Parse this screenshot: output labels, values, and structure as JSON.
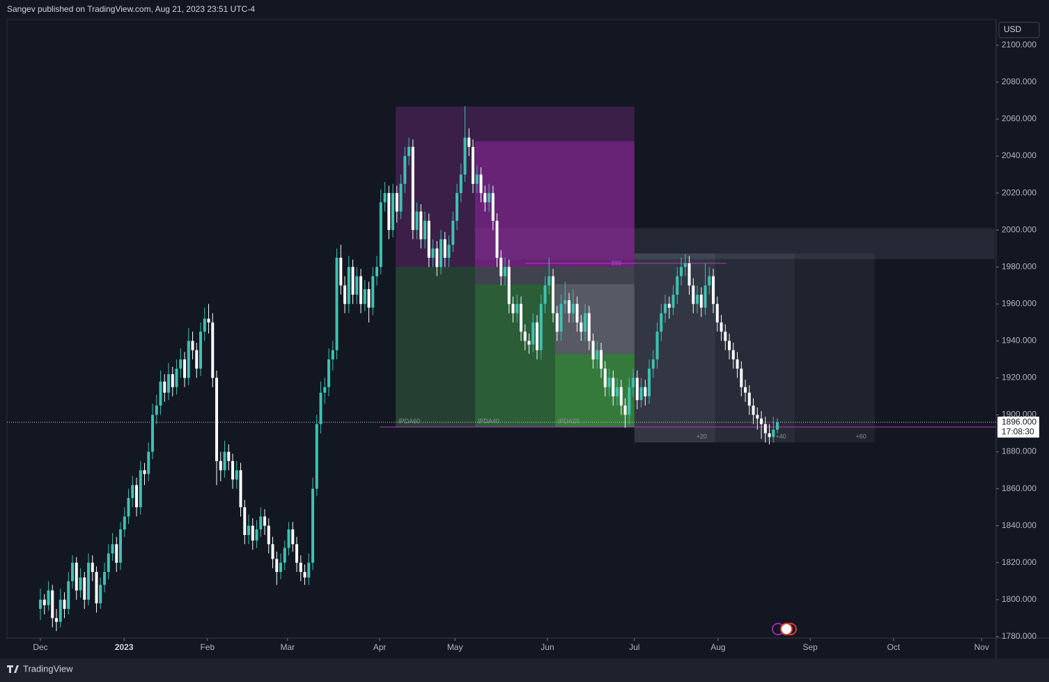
{
  "header": {
    "text": "Sangev published on TradingView.com, Aug 21, 2023 23:51 UTC-4"
  },
  "footer": {
    "brand": "TradingView"
  },
  "chart_data": {
    "type": "candlestick",
    "currency": "USD",
    "up_color": "#3fc1b0",
    "down_color": "#ffffff",
    "xlim": [
      -8.35,
      238.6
    ],
    "xticks": [
      {
        "value": 0,
        "label": "Dec"
      },
      {
        "value": 20.9,
        "label": "2023"
      },
      {
        "value": 41.7,
        "label": "Feb"
      },
      {
        "value": 61.7,
        "label": "Mar"
      },
      {
        "value": 84.7,
        "label": "Apr"
      },
      {
        "value": 103.5,
        "label": "May"
      },
      {
        "value": 126.6,
        "label": "Jun"
      },
      {
        "value": 148.3,
        "label": "Jul"
      },
      {
        "value": 169.2,
        "label": "Aug"
      },
      {
        "value": 192.2,
        "label": "Sep"
      },
      {
        "value": 213,
        "label": "Oct"
      },
      {
        "value": 235,
        "label": "Nov"
      }
    ],
    "ylim": [
      1779.2,
      2113.9
    ],
    "yticks": [
      {
        "value": 1780,
        "label": "1780.000"
      },
      {
        "value": 1800,
        "label": "1800.000"
      },
      {
        "value": 1820,
        "label": "1820.000"
      },
      {
        "value": 1840,
        "label": "1840.000"
      },
      {
        "value": 1860,
        "label": "1860.000"
      },
      {
        "value": 1880,
        "label": "1880.000"
      },
      {
        "value": 1900,
        "label": "1900.000"
      },
      {
        "value": 1920,
        "label": "1920.000"
      },
      {
        "value": 1940,
        "label": "1940.000"
      },
      {
        "value": 1960,
        "label": "1960.000"
      },
      {
        "value": 1980,
        "label": "1980.000"
      },
      {
        "value": 2000,
        "label": "2000.000"
      },
      {
        "value": 2020,
        "label": "2020.000"
      },
      {
        "value": 2040,
        "label": "2040.000"
      },
      {
        "value": 2060,
        "label": "2060.000"
      },
      {
        "value": 2080,
        "label": "2080.000"
      },
      {
        "value": 2100,
        "label": "2100.000"
      }
    ],
    "last_price": {
      "value": 1896,
      "label": "1896.000"
    },
    "countdown": "17:08:30",
    "zones": [
      {
        "x0": 108.5,
        "x1": 238.3,
        "y0": 1984.3,
        "y1": 2000.9,
        "color": "rgba(90,95,115,0.25)"
      },
      {
        "x0": 88.7,
        "x1": 148.3,
        "y0": 1980.1,
        "y1": 2066.8,
        "color": "rgba(120,45,130,0.4)"
      },
      {
        "x0": 108.5,
        "x1": 148.3,
        "y0": 1980.1,
        "y1": 2048,
        "color": "rgba(150,40,165,0.5)"
      },
      {
        "x0": 88.7,
        "x1": 108.5,
        "y0": 1893.4,
        "y1": 1980.1,
        "color": "rgba(55,105,65,0.5)",
        "label": "IPDA60",
        "label_position": "bottom-left"
      },
      {
        "x0": 108.5,
        "x1": 148.3,
        "y0": 1970.7,
        "y1": 1980.1,
        "color": "rgba(170,170,185,0.3)"
      },
      {
        "x0": 108.5,
        "x1": 128.5,
        "y0": 1893.4,
        "y1": 1970.7,
        "color": "rgba(60,140,70,0.6)",
        "label": "IPDA40",
        "label_position": "bottom-left"
      },
      {
        "x0": 128.5,
        "x1": 148.3,
        "y0": 1933,
        "y1": 1970.7,
        "color": "rgba(190,190,200,0.4)"
      },
      {
        "x0": 128.5,
        "x1": 148.3,
        "y0": 1893.4,
        "y1": 1933,
        "color": "rgba(70,165,70,0.7)",
        "label": "IPDA20",
        "label_position": "bottom-left"
      },
      {
        "x0": 148.3,
        "x1": 168.5,
        "y0": 1885.1,
        "y1": 1987.3,
        "color": "rgba(170,175,190,0.22)",
        "label": "+20",
        "label_position": "bottom-right"
      },
      {
        "x0": 168.5,
        "x1": 188.3,
        "y0": 1885.1,
        "y1": 1987.3,
        "color": "rgba(170,175,190,0.14)",
        "label": "+40",
        "label_position": "bottom-right"
      },
      {
        "x0": 188.3,
        "x1": 208.3,
        "y0": 1885.1,
        "y1": 1987.3,
        "color": "rgba(170,175,190,0.08)",
        "label": "+60",
        "label_position": "bottom-right"
      }
    ],
    "lines": [
      {
        "x0": 121.2,
        "x1": 171.3,
        "y": 1982,
        "color": "#b23bc4",
        "label": "$$$"
      },
      {
        "x0": 84.7,
        "x1": 238.6,
        "y": 1893.4,
        "color": "#b23bc4"
      }
    ],
    "ohlc": [
      [
        1795,
        1806,
        1789,
        1800
      ],
      [
        1800,
        1803,
        1792,
        1797
      ],
      [
        1797,
        1810,
        1794,
        1805
      ],
      [
        1805,
        1808,
        1785,
        1790
      ],
      [
        1790,
        1795,
        1783,
        1788
      ],
      [
        1788,
        1806,
        1785,
        1800
      ],
      [
        1800,
        1804,
        1790,
        1795
      ],
      [
        1795,
        1815,
        1792,
        1810
      ],
      [
        1810,
        1824,
        1806,
        1820
      ],
      [
        1820,
        1823,
        1800,
        1805
      ],
      [
        1805,
        1817,
        1801,
        1812
      ],
      [
        1812,
        1815,
        1795,
        1800
      ],
      [
        1800,
        1825,
        1797,
        1820
      ],
      [
        1820,
        1824,
        1810,
        1815
      ],
      [
        1815,
        1818,
        1793,
        1798
      ],
      [
        1798,
        1812,
        1795,
        1808
      ],
      [
        1808,
        1820,
        1804,
        1815
      ],
      [
        1815,
        1830,
        1811,
        1825
      ],
      [
        1825,
        1836,
        1821,
        1830
      ],
      [
        1830,
        1834,
        1815,
        1820
      ],
      [
        1820,
        1842,
        1816,
        1838
      ],
      [
        1838,
        1850,
        1834,
        1845
      ],
      [
        1845,
        1860,
        1841,
        1855
      ],
      [
        1855,
        1867,
        1850,
        1862
      ],
      [
        1862,
        1866,
        1845,
        1850
      ],
      [
        1850,
        1875,
        1846,
        1870
      ],
      [
        1870,
        1874,
        1862,
        1868
      ],
      [
        1868,
        1885,
        1864,
        1880
      ],
      [
        1880,
        1906,
        1876,
        1900
      ],
      [
        1900,
        1911,
        1895,
        1905
      ],
      [
        1905,
        1924,
        1900,
        1918
      ],
      [
        1918,
        1922,
        1907,
        1912
      ],
      [
        1912,
        1928,
        1908,
        1922
      ],
      [
        1922,
        1926,
        1910,
        1915
      ],
      [
        1915,
        1930,
        1911,
        1925
      ],
      [
        1925,
        1936,
        1920,
        1930
      ],
      [
        1930,
        1934,
        1915,
        1920
      ],
      [
        1920,
        1947,
        1916,
        1940
      ],
      [
        1940,
        1945,
        1930,
        1935
      ],
      [
        1935,
        1939,
        1920,
        1925
      ],
      [
        1925,
        1950,
        1921,
        1945
      ],
      [
        1945,
        1958,
        1940,
        1952
      ],
      [
        1952,
        1960,
        1944,
        1950
      ],
      [
        1950,
        1955,
        1915,
        1920
      ],
      [
        1920,
        1924,
        1862,
        1875
      ],
      [
        1875,
        1880,
        1864,
        1870
      ],
      [
        1870,
        1886,
        1866,
        1880
      ],
      [
        1880,
        1884,
        1870,
        1875
      ],
      [
        1875,
        1879,
        1860,
        1865
      ],
      [
        1865,
        1875,
        1860,
        1870
      ],
      [
        1870,
        1874,
        1845,
        1850
      ],
      [
        1850,
        1854,
        1830,
        1835
      ],
      [
        1835,
        1846,
        1830,
        1840
      ],
      [
        1840,
        1844,
        1827,
        1832
      ],
      [
        1832,
        1843,
        1828,
        1838
      ],
      [
        1838,
        1850,
        1834,
        1845
      ],
      [
        1845,
        1849,
        1835,
        1840
      ],
      [
        1840,
        1844,
        1825,
        1830
      ],
      [
        1830,
        1834,
        1817,
        1822
      ],
      [
        1822,
        1826,
        1808,
        1815
      ],
      [
        1815,
        1825,
        1811,
        1820
      ],
      [
        1820,
        1832,
        1816,
        1828
      ],
      [
        1828,
        1842,
        1824,
        1838
      ],
      [
        1838,
        1842,
        1826,
        1830
      ],
      [
        1830,
        1834,
        1815,
        1820
      ],
      [
        1820,
        1824,
        1810,
        1815
      ],
      [
        1815,
        1819,
        1808,
        1812
      ],
      [
        1812,
        1825,
        1808,
        1820
      ],
      [
        1820,
        1866,
        1816,
        1860
      ],
      [
        1860,
        1900,
        1856,
        1895
      ],
      [
        1895,
        1918,
        1890,
        1912
      ],
      [
        1912,
        1920,
        1906,
        1915
      ],
      [
        1915,
        1936,
        1910,
        1930
      ],
      [
        1930,
        1940,
        1924,
        1935
      ],
      [
        1935,
        1990,
        1930,
        1985
      ],
      [
        1985,
        1992,
        1965,
        1970
      ],
      [
        1970,
        1975,
        1955,
        1960
      ],
      [
        1960,
        1986,
        1955,
        1980
      ],
      [
        1980,
        1984,
        1960,
        1965
      ],
      [
        1965,
        1980,
        1960,
        1975
      ],
      [
        1975,
        1979,
        1955,
        1960
      ],
      [
        1960,
        1973,
        1956,
        1968
      ],
      [
        1968,
        1972,
        1950,
        1958
      ],
      [
        1958,
        1980,
        1954,
        1975
      ],
      [
        1975,
        1986,
        1970,
        1980
      ],
      [
        1980,
        2022,
        1976,
        2015
      ],
      [
        2015,
        2026,
        2010,
        2020
      ],
      [
        2020,
        2024,
        1995,
        2000
      ],
      [
        2000,
        2025,
        1996,
        2020
      ],
      [
        2020,
        2024,
        2004,
        2010
      ],
      [
        2010,
        2030,
        2006,
        2025
      ],
      [
        2025,
        2045,
        2020,
        2040
      ],
      [
        2040,
        2050,
        2035,
        2045
      ],
      [
        2045,
        2049,
        1995,
        2000
      ],
      [
        2000,
        2015,
        1995,
        2010
      ],
      [
        2010,
        2014,
        1990,
        1995
      ],
      [
        1995,
        2010,
        1990,
        2005
      ],
      [
        2005,
        2009,
        1980,
        1985
      ],
      [
        1985,
        1995,
        1980,
        1990
      ],
      [
        1990,
        1994,
        1975,
        1980
      ],
      [
        1980,
        2000,
        1976,
        1995
      ],
      [
        1995,
        1999,
        1980,
        1985
      ],
      [
        1985,
        1997,
        1980,
        1992
      ],
      [
        1992,
        2010,
        1988,
        2005
      ],
      [
        2005,
        2025,
        2000,
        2020
      ],
      [
        2020,
        2036,
        2015,
        2030
      ],
      [
        2030,
        2067,
        2026,
        2050
      ],
      [
        2050,
        2055,
        2040,
        2045
      ],
      [
        2045,
        2049,
        2020,
        2025
      ],
      [
        2025,
        2035,
        2020,
        2030
      ],
      [
        2030,
        2034,
        2015,
        2020
      ],
      [
        2020,
        2024,
        2010,
        2015
      ],
      [
        2015,
        2025,
        2010,
        2020
      ],
      [
        2020,
        2024,
        2000,
        2005
      ],
      [
        2005,
        2009,
        1980,
        1985
      ],
      [
        1985,
        1989,
        1970,
        1975
      ],
      [
        1975,
        1985,
        1970,
        1980
      ],
      [
        1980,
        1984,
        1955,
        1960
      ],
      [
        1960,
        1964,
        1950,
        1955
      ],
      [
        1955,
        1965,
        1950,
        1960
      ],
      [
        1960,
        1964,
        1940,
        1945
      ],
      [
        1945,
        1949,
        1935,
        1940
      ],
      [
        1940,
        1944,
        1933,
        1938
      ],
      [
        1938,
        1955,
        1934,
        1950
      ],
      [
        1950,
        1954,
        1930,
        1935
      ],
      [
        1935,
        1965,
        1930,
        1960
      ],
      [
        1960,
        1975,
        1955,
        1970
      ],
      [
        1970,
        1985,
        1965,
        1975
      ],
      [
        1975,
        1979,
        1950,
        1955
      ],
      [
        1955,
        1959,
        1940,
        1945
      ],
      [
        1945,
        1965,
        1940,
        1960
      ],
      [
        1960,
        1972,
        1955,
        1962
      ],
      [
        1962,
        1966,
        1950,
        1955
      ],
      [
        1955,
        1968,
        1950,
        1960
      ],
      [
        1960,
        1964,
        1945,
        1950
      ],
      [
        1950,
        1954,
        1940,
        1945
      ],
      [
        1945,
        1960,
        1940,
        1955
      ],
      [
        1955,
        1959,
        1935,
        1940
      ],
      [
        1940,
        1944,
        1925,
        1930
      ],
      [
        1930,
        1940,
        1925,
        1935
      ],
      [
        1935,
        1939,
        1920,
        1925
      ],
      [
        1925,
        1929,
        1910,
        1915
      ],
      [
        1915,
        1925,
        1910,
        1920
      ],
      [
        1920,
        1924,
        1905,
        1910
      ],
      [
        1910,
        1920,
        1905,
        1915
      ],
      [
        1915,
        1919,
        1900,
        1905
      ],
      [
        1905,
        1909,
        1893,
        1900
      ],
      [
        1900,
        1920,
        1895,
        1915
      ],
      [
        1915,
        1925,
        1910,
        1920
      ],
      [
        1920,
        1924,
        1903,
        1908
      ],
      [
        1908,
        1920,
        1904,
        1915
      ],
      [
        1915,
        1919,
        1905,
        1910
      ],
      [
        1910,
        1930,
        1906,
        1925
      ],
      [
        1925,
        1935,
        1920,
        1930
      ],
      [
        1930,
        1950,
        1925,
        1945
      ],
      [
        1945,
        1960,
        1940,
        1955
      ],
      [
        1955,
        1965,
        1950,
        1960
      ],
      [
        1960,
        1964,
        1952,
        1958
      ],
      [
        1958,
        1970,
        1954,
        1965
      ],
      [
        1965,
        1980,
        1960,
        1975
      ],
      [
        1975,
        1985,
        1970,
        1980
      ],
      [
        1980,
        1987,
        1975,
        1982
      ],
      [
        1982,
        1986,
        1965,
        1970
      ],
      [
        1970,
        1974,
        1955,
        1960
      ],
      [
        1960,
        1970,
        1955,
        1965
      ],
      [
        1965,
        1969,
        1953,
        1958
      ],
      [
        1958,
        1982,
        1954,
        1970
      ],
      [
        1970,
        1980,
        1965,
        1975
      ],
      [
        1975,
        1979,
        1955,
        1960
      ],
      [
        1960,
        1964,
        1945,
        1950
      ],
      [
        1950,
        1954,
        1940,
        1945
      ],
      [
        1945,
        1949,
        1935,
        1940
      ],
      [
        1940,
        1944,
        1930,
        1935
      ],
      [
        1935,
        1939,
        1925,
        1930
      ],
      [
        1930,
        1934,
        1920,
        1925
      ],
      [
        1925,
        1929,
        1910,
        1915
      ],
      [
        1915,
        1919,
        1907,
        1912
      ],
      [
        1912,
        1916,
        1900,
        1905
      ],
      [
        1905,
        1909,
        1895,
        1900
      ],
      [
        1900,
        1904,
        1892,
        1898
      ],
      [
        1898,
        1902,
        1887,
        1895
      ],
      [
        1895,
        1899,
        1885,
        1890
      ],
      [
        1890,
        1895,
        1884,
        1888
      ],
      [
        1888,
        1899,
        1885,
        1892
      ],
      [
        1892,
        1898,
        1890,
        1896
      ]
    ]
  }
}
